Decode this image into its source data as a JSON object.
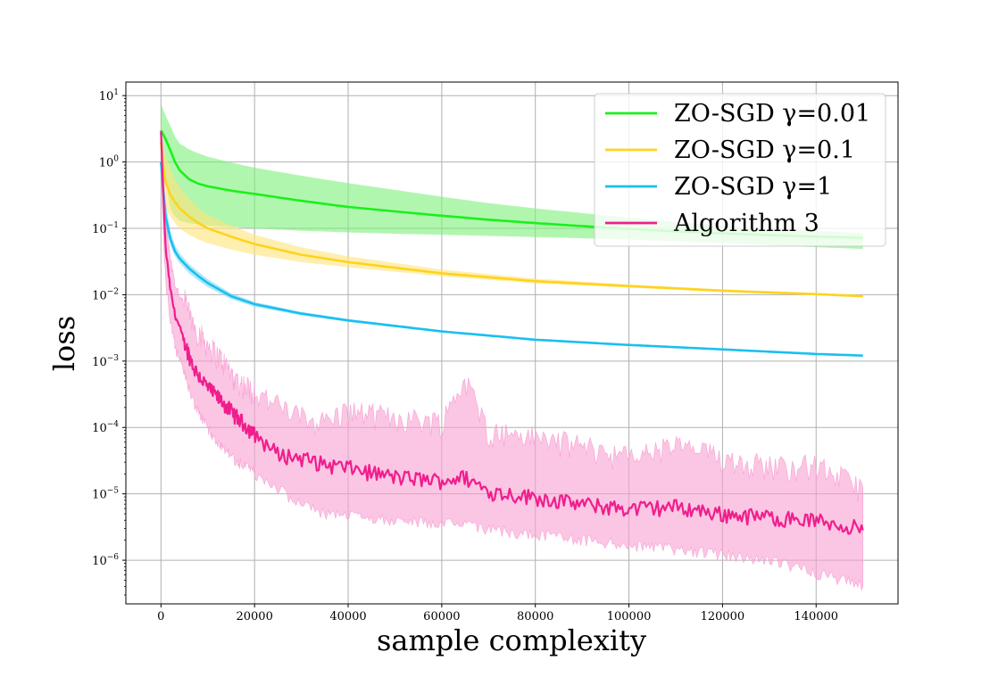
{
  "chart_data": {
    "type": "line",
    "title": "",
    "xlabel": "sample complexity",
    "ylabel": "loss",
    "xscale": "linear",
    "yscale": "log",
    "xlim": [
      -7500,
      157500
    ],
    "ylim": [
      2.2e-07,
      16
    ],
    "grid": true,
    "legend_position": "upper right",
    "x_ticks": [
      {
        "value": 0,
        "label": "0"
      },
      {
        "value": 20000,
        "label": "20000"
      },
      {
        "value": 40000,
        "label": "40000"
      },
      {
        "value": 60000,
        "label": "60000"
      },
      {
        "value": 80000,
        "label": "80000"
      },
      {
        "value": 100000,
        "label": "100000"
      },
      {
        "value": 120000,
        "label": "120000"
      },
      {
        "value": 140000,
        "label": "140000"
      }
    ],
    "y_ticks": [
      {
        "exp": 1,
        "base": "10",
        "sup": "1"
      },
      {
        "exp": 0,
        "base": "10",
        "sup": "0"
      },
      {
        "exp": -1,
        "base": "10",
        "sup": "−1"
      },
      {
        "exp": -2,
        "base": "10",
        "sup": "−2"
      },
      {
        "exp": -3,
        "base": "10",
        "sup": "−3"
      },
      {
        "exp": -4,
        "base": "10",
        "sup": "−4"
      },
      {
        "exp": -5,
        "base": "10",
        "sup": "−5"
      },
      {
        "exp": -6,
        "base": "10",
        "sup": "−6"
      }
    ],
    "series": [
      {
        "name": "ZO-SGD γ=0.01",
        "color": "#1af01a",
        "band_color": "#7df07a",
        "noisy": false,
        "x": [
          0,
          1000,
          2000,
          3000,
          4000,
          6000,
          8000,
          10000,
          15000,
          20000,
          30000,
          40000,
          50000,
          60000,
          70000,
          80000,
          90000,
          100000,
          110000,
          120000,
          130000,
          140000,
          150000
        ],
        "y": [
          3.0,
          2.2,
          1.5,
          1.0,
          0.75,
          0.55,
          0.47,
          0.43,
          0.37,
          0.33,
          0.26,
          0.21,
          0.18,
          0.155,
          0.135,
          0.12,
          0.108,
          0.098,
          0.09,
          0.084,
          0.079,
          0.075,
          0.072
        ],
        "lower": [
          1.5,
          0.5,
          0.2,
          0.15,
          0.13,
          0.12,
          0.115,
          0.11,
          0.105,
          0.1,
          0.092,
          0.087,
          0.083,
          0.08,
          0.077,
          0.074,
          0.071,
          0.068,
          0.064,
          0.06,
          0.056,
          0.052,
          0.049
        ],
        "upper": [
          7.5,
          5.0,
          3.5,
          2.4,
          1.9,
          1.55,
          1.35,
          1.2,
          0.98,
          0.82,
          0.62,
          0.48,
          0.38,
          0.3,
          0.24,
          0.2,
          0.17,
          0.145,
          0.125,
          0.11,
          0.1,
          0.092,
          0.085
        ]
      },
      {
        "name": "ZO-SGD γ=0.1",
        "color": "#ffd21e",
        "band_color": "#ffe57a",
        "noisy": false,
        "x": [
          0,
          500,
          1000,
          2000,
          3000,
          4000,
          6000,
          8000,
          10000,
          15000,
          20000,
          30000,
          40000,
          60000,
          80000,
          100000,
          120000,
          140000,
          150000
        ],
        "y": [
          2.0,
          0.8,
          0.5,
          0.32,
          0.25,
          0.2,
          0.15,
          0.12,
          0.1,
          0.075,
          0.058,
          0.04,
          0.031,
          0.021,
          0.016,
          0.0135,
          0.0115,
          0.0102,
          0.0095
        ],
        "lower": [
          1.0,
          0.3,
          0.2,
          0.15,
          0.12,
          0.1,
          0.08,
          0.068,
          0.06,
          0.048,
          0.04,
          0.031,
          0.026,
          0.019,
          0.0148,
          0.0128,
          0.011,
          0.0098,
          0.0092
        ],
        "upper": [
          3.0,
          1.6,
          1.2,
          0.8,
          0.55,
          0.42,
          0.28,
          0.2,
          0.16,
          0.11,
          0.08,
          0.052,
          0.038,
          0.024,
          0.0175,
          0.0143,
          0.012,
          0.0106,
          0.0099
        ]
      },
      {
        "name": "ZO-SGD γ=1",
        "color": "#19bff0",
        "band_color": "#7dd8f5",
        "noisy": false,
        "x": [
          0,
          500,
          1000,
          2000,
          3000,
          4000,
          6000,
          8000,
          10000,
          15000,
          20000,
          30000,
          40000,
          60000,
          80000,
          100000,
          120000,
          140000,
          150000
        ],
        "y": [
          1.0,
          0.35,
          0.15,
          0.07,
          0.045,
          0.035,
          0.025,
          0.019,
          0.015,
          0.0095,
          0.0072,
          0.0052,
          0.0041,
          0.0028,
          0.0021,
          0.00175,
          0.0015,
          0.00128,
          0.00121
        ],
        "lower": [
          0.6,
          0.2,
          0.1,
          0.055,
          0.038,
          0.03,
          0.021,
          0.0163,
          0.013,
          0.0086,
          0.0066,
          0.0049,
          0.0039,
          0.0027,
          0.00205,
          0.0017,
          0.00146,
          0.00125,
          0.00118
        ],
        "upper": [
          1.6,
          0.6,
          0.25,
          0.09,
          0.056,
          0.042,
          0.029,
          0.0222,
          0.0172,
          0.0105,
          0.0078,
          0.0055,
          0.0043,
          0.0029,
          0.00215,
          0.0018,
          0.00154,
          0.00131,
          0.00124
        ]
      },
      {
        "name": "Algorithm 3",
        "color": "#f01e8c",
        "band_color": "#f8a0d2",
        "noisy": true,
        "x": [
          0,
          500,
          1000,
          2000,
          3000,
          5000,
          7000,
          10000,
          13000,
          16000,
          20000,
          25000,
          30000,
          35000,
          40000,
          50000,
          60000,
          65000,
          70000,
          80000,
          90000,
          100000,
          110000,
          120000,
          130000,
          140000,
          150000
        ],
        "y": [
          2.8,
          0.3,
          0.05,
          0.012,
          0.005,
          0.002,
          0.0008,
          0.0004,
          0.00025,
          0.00015,
          8e-05,
          4e-05,
          3.5e-05,
          2.8e-05,
          2.5e-05,
          1.8e-05,
          1.6e-05,
          1.8e-05,
          1.1e-05,
          9e-06,
          7e-06,
          6e-06,
          6.5e-06,
          5e-06,
          4.5e-06,
          4e-06,
          3e-06
        ],
        "lower": [
          1.5,
          0.1,
          0.02,
          0.005,
          0.002,
          0.0008,
          0.0003,
          0.00012,
          6e-05,
          4e-05,
          2.5e-05,
          1.5e-05,
          8e-06,
          6e-06,
          6e-06,
          5e-06,
          4.5e-06,
          4e-06,
          3.5e-06,
          3e-06,
          2.5e-06,
          2e-06,
          1.8e-06,
          1.5e-06,
          1.2e-06,
          8e-07,
          5e-07
        ],
        "upper": [
          3.0,
          0.8,
          0.12,
          0.03,
          0.012,
          0.005,
          0.002,
          0.001,
          0.0006,
          0.0003,
          0.0002,
          0.00012,
          8e-05,
          7e-05,
          0.0001,
          8e-05,
          7e-05,
          0.0003,
          5e-05,
          4e-05,
          3e-05,
          2e-05,
          3e-05,
          2e-05,
          1.5e-05,
          1.5e-05,
          7e-06
        ]
      }
    ]
  }
}
